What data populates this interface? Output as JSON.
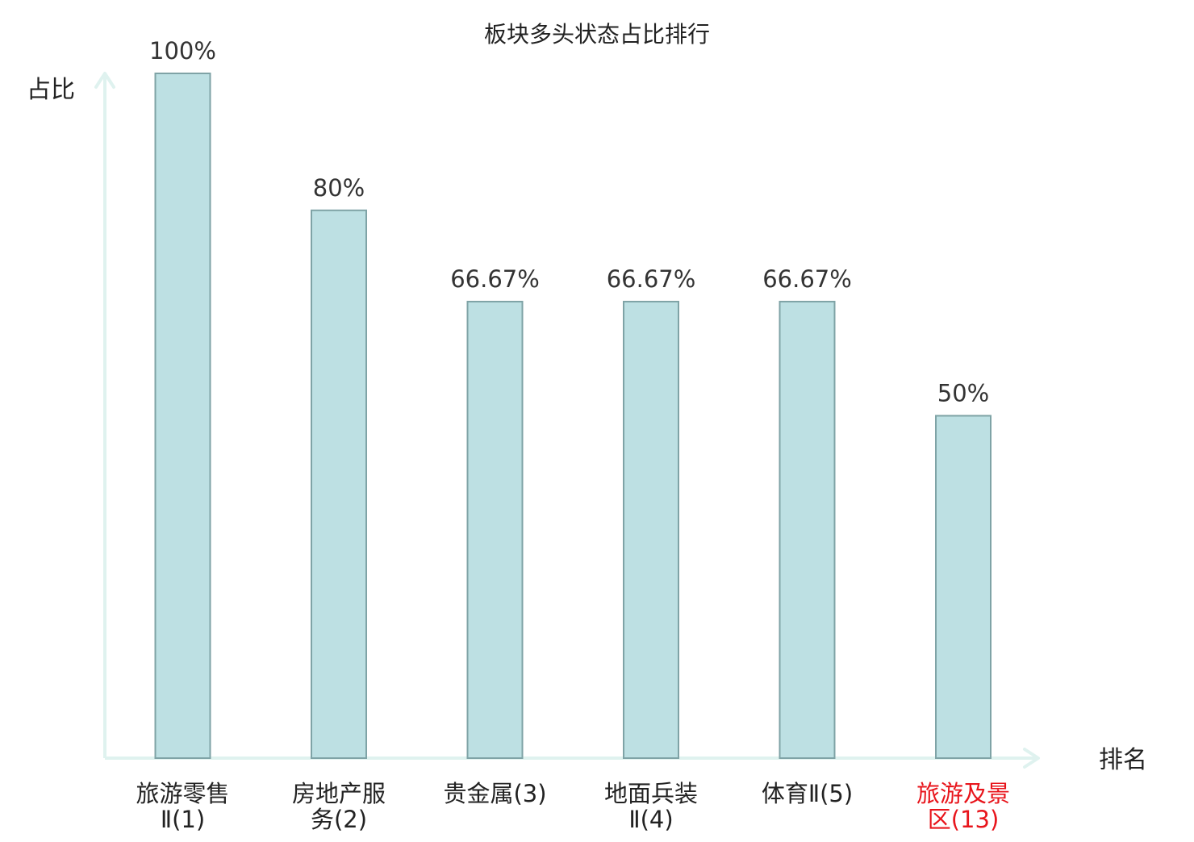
{
  "chart_data": {
    "type": "bar",
    "title": "板块多头状态占比排行",
    "ylabel": "占比",
    "xlabel": "排名",
    "ylim": [
      0,
      100
    ],
    "grid": false,
    "categories": [
      {
        "lines": [
          "旅游零售",
          "Ⅱ(1)"
        ],
        "highlight": false
      },
      {
        "lines": [
          "房地产服",
          "务(2)"
        ],
        "highlight": false
      },
      {
        "lines": [
          "贵金属(3)"
        ],
        "highlight": false
      },
      {
        "lines": [
          "地面兵装",
          "Ⅱ(4)"
        ],
        "highlight": false
      },
      {
        "lines": [
          "体育Ⅱ(5)"
        ],
        "highlight": false
      },
      {
        "lines": [
          "旅游及景",
          "区(13)"
        ],
        "highlight": true
      }
    ],
    "values": [
      100,
      80,
      66.67,
      66.67,
      66.67,
      50
    ],
    "value_labels": [
      "100%",
      "80%",
      "66.67%",
      "66.67%",
      "66.67%",
      "50%"
    ],
    "colors": {
      "bar_fill": "#bde0e3",
      "bar_stroke": "#7fa3a6",
      "axis": "#dff2ef",
      "label_text": "#333333",
      "category_text": "#222222",
      "highlight_text": "#e8151c"
    }
  }
}
